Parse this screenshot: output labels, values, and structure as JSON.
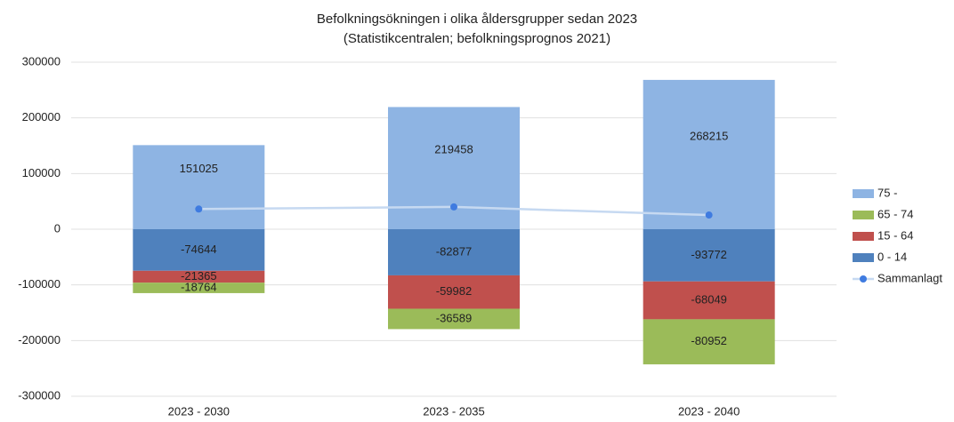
{
  "chart_data": {
    "type": "bar",
    "stacked": true,
    "title": "Befolkningsökningen i olika åldersgrupper sedan 2023",
    "subtitle": "(Statistikcentralen; befolkningsprognos 2021)",
    "categories": [
      "2023 - 2030",
      "2023 - 2035",
      "2023 - 2040"
    ],
    "series": [
      {
        "name": "75 -",
        "color": "#8eb4e3",
        "values": [
          151025,
          219458,
          268215
        ]
      },
      {
        "name": "65 - 74",
        "color": "#9bbb59",
        "values": [
          -18764,
          -36589,
          -80952
        ]
      },
      {
        "name": "15 - 64",
        "color": "#c0504d",
        "values": [
          -21365,
          -59982,
          -68049
        ]
      },
      {
        "name": "0 - 14",
        "color": "#4f81bd",
        "values": [
          -74644,
          -82877,
          -93772
        ]
      },
      {
        "name": "Sammanlagt",
        "type": "line",
        "color": "#c6d9f1",
        "marker_color": "#3f7be0",
        "values": [
          36252,
          40010,
          25442
        ]
      }
    ],
    "ylim": [
      -300000,
      300000
    ],
    "yticks": [
      -300000,
      -200000,
      -100000,
      0,
      100000,
      200000,
      300000
    ],
    "grid": true,
    "legend": "right"
  }
}
